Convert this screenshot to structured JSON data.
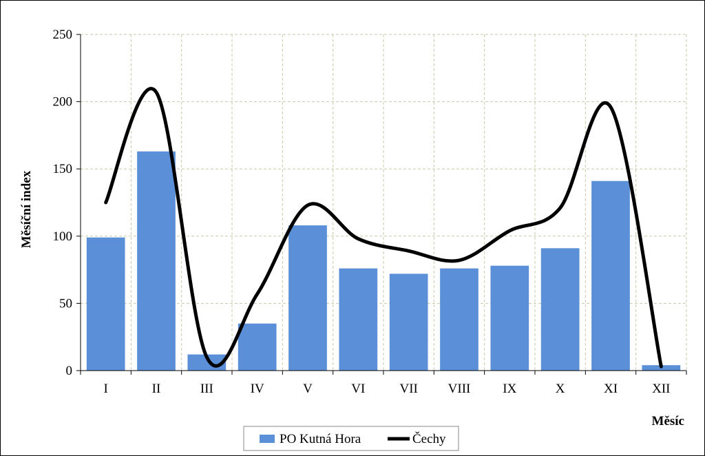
{
  "chart_data": {
    "type": "bar",
    "title": "",
    "xlabel": "Měsíc",
    "ylabel": "Měsíční index",
    "categories": [
      "I",
      "II",
      "III",
      "IV",
      "V",
      "VI",
      "VII",
      "VIII",
      "IX",
      "X",
      "XI",
      "XII"
    ],
    "ylim": [
      0,
      250
    ],
    "yticks": [
      "0",
      "50",
      "100",
      "150",
      "200",
      "250"
    ],
    "grid": true,
    "legend_position": "bottom",
    "series": [
      {
        "name": "PO Kutná Hora",
        "type": "bar",
        "color": "#5b8fd8",
        "values": [
          99,
          163,
          12,
          35,
          108,
          76,
          72,
          76,
          78,
          91,
          141,
          4
        ]
      },
      {
        "name": "Čechy",
        "type": "line",
        "smooth": true,
        "color": "#000000",
        "values": [
          125,
          207,
          10,
          57,
          123,
          98,
          89,
          82,
          104,
          121,
          196,
          3
        ]
      }
    ]
  }
}
